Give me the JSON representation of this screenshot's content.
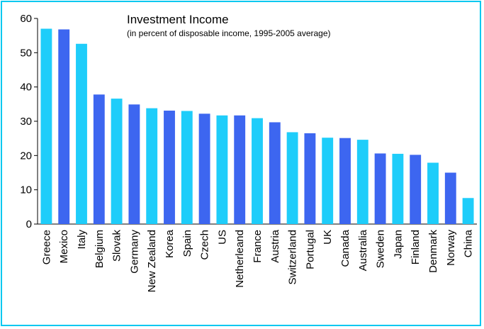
{
  "chart_data": {
    "type": "bar",
    "title": "Investment Income",
    "subtitle": "(in percent of disposable income, 1995-2005 average)",
    "xlabel": "",
    "ylabel": "",
    "ylim": [
      0,
      60
    ],
    "yticks": [
      0,
      10,
      20,
      30,
      40,
      50,
      60
    ],
    "grid": false,
    "legend": "none",
    "colors": {
      "light": "#1ecdfa",
      "dark": "#3d66f0"
    },
    "categories": [
      "Greece",
      "Mexico",
      "Italy",
      "Belgium",
      "Slovak",
      "Germany",
      "New Zealand",
      "Korea",
      "Spain",
      "Czech",
      "US",
      "Netherleand",
      "France",
      "Austria",
      "Switzerland",
      "Portugal",
      "UK",
      "Canada",
      "Australia",
      "Sweden",
      "Japan",
      "Finland",
      "Denmark",
      "Norway",
      "China"
    ],
    "values": [
      57.0,
      56.8,
      52.6,
      37.8,
      36.6,
      34.9,
      33.8,
      33.1,
      33.0,
      32.2,
      31.7,
      31.7,
      30.9,
      29.7,
      26.8,
      26.5,
      25.2,
      25.1,
      24.6,
      20.6,
      20.5,
      20.2,
      17.9,
      15.0,
      7.6
    ],
    "bar_colors": [
      "light",
      "dark",
      "light",
      "dark",
      "light",
      "dark",
      "light",
      "dark",
      "light",
      "dark",
      "light",
      "dark",
      "light",
      "dark",
      "light",
      "dark",
      "light",
      "dark",
      "light",
      "dark",
      "light",
      "dark",
      "light",
      "dark",
      "light"
    ]
  }
}
